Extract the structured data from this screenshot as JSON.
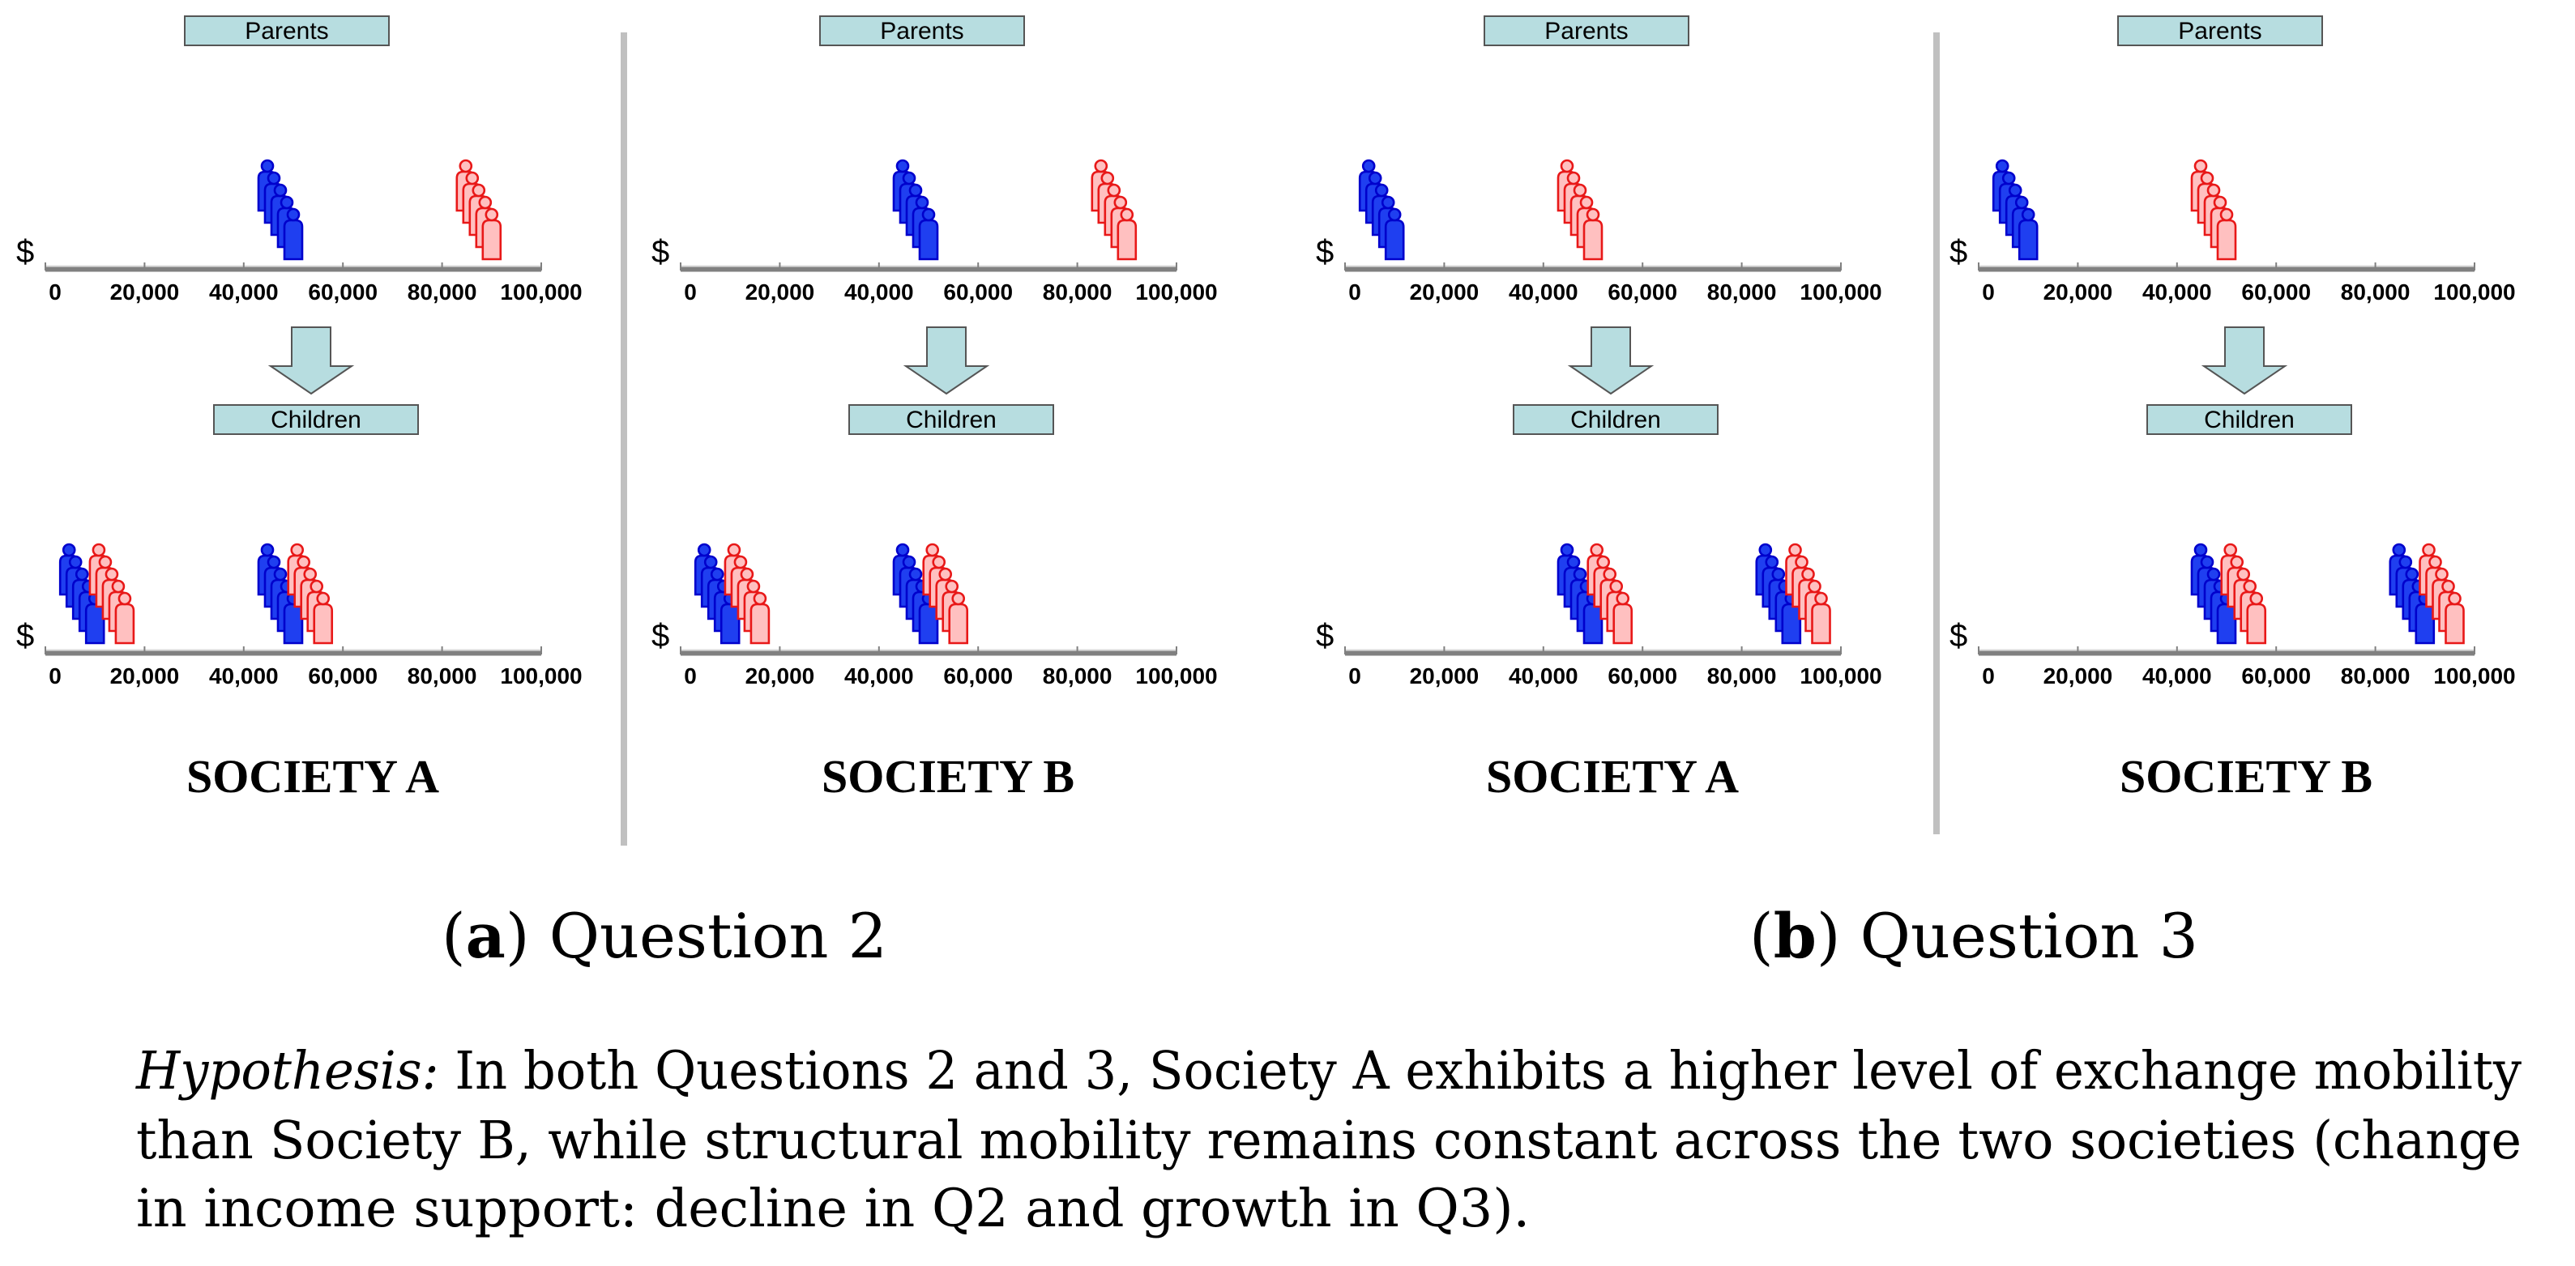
{
  "colors": {
    "blue_fill": "#1f3ff0",
    "blue_stroke": "#0000cc",
    "red_fill": "#ffc0c0",
    "red_stroke": "#e81818",
    "box_fill": "#b7dde0",
    "axis": "#808080",
    "divider": "#c0c0c0"
  },
  "icons": {
    "person": "person-icon",
    "arrow": "down-arrow-icon"
  },
  "labels": {
    "parents": "Parents",
    "children": "Children",
    "currency": "$",
    "ticks": [
      "0",
      "20,000",
      "40,000",
      "60,000",
      "80,000",
      "100,000"
    ]
  },
  "panels": [
    {
      "title": "SOCIETY  A",
      "parents": {
        "blue": 50000,
        "red": 90000
      },
      "children": {
        "left": {
          "blue": 10000,
          "red": 16000
        },
        "right": {
          "blue": 50000,
          "red": 56000
        }
      }
    },
    {
      "title": "SOCIETY B",
      "parents": {
        "blue": 50000,
        "red": 90000
      },
      "children": {
        "left": {
          "blue": 10000,
          "red": 16000
        },
        "right": {
          "blue": 50000,
          "red": 56000
        }
      }
    },
    {
      "title": "SOCIETY  A",
      "parents": {
        "blue": 10000,
        "red": 50000
      },
      "children": {
        "left": {
          "blue": 50000,
          "red": 56000
        },
        "right": {
          "blue": 90000,
          "red": 96000
        }
      }
    },
    {
      "title": "SOCIETY B",
      "parents": {
        "blue": 10000,
        "red": 50000
      },
      "children": {
        "left": {
          "blue": 50000,
          "red": 56000
        },
        "right": {
          "blue": 90000,
          "red": 96000
        }
      }
    }
  ],
  "subcaptions": [
    {
      "letter": "a",
      "text": " Question 2"
    },
    {
      "letter": "b",
      "text": " Question 3"
    }
  ],
  "hypothesis": {
    "label": "Hypothesis:",
    "lines": [
      " In both Questions 2 and 3, Society A exhibits a higher level of exchange mobility",
      "than Society B, while structural mobility remains constant across the two societies (change",
      "in income support: decline in Q2 and growth in Q3)."
    ]
  }
}
